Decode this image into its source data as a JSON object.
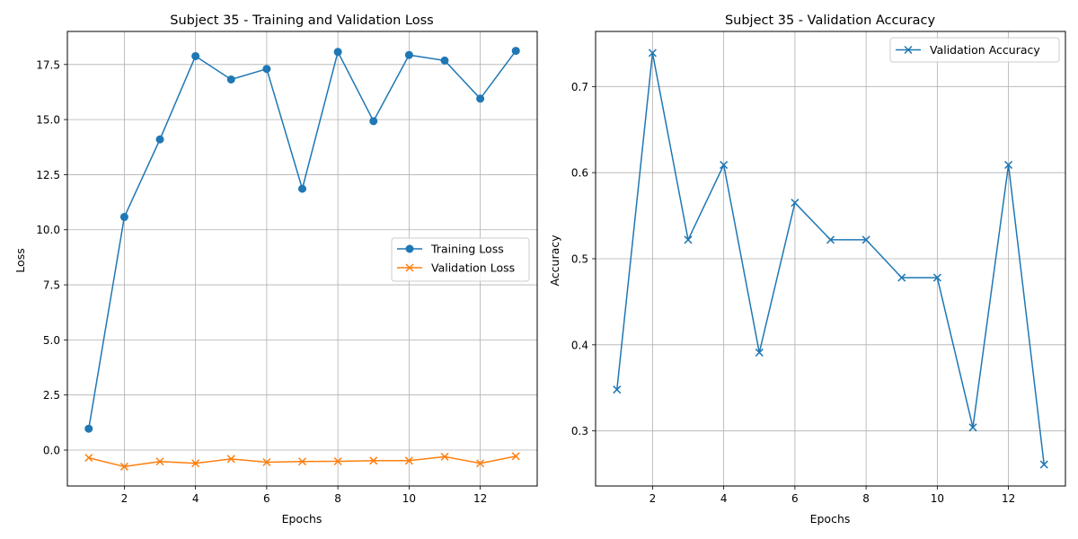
{
  "chart_data": [
    {
      "type": "line",
      "title": "Subject 35 - Training and Validation Loss",
      "xlabel": "Epochs",
      "ylabel": "Loss",
      "x": [
        1,
        2,
        3,
        4,
        5,
        6,
        7,
        8,
        9,
        10,
        11,
        12,
        13
      ],
      "xlim": [
        0.4,
        13.6
      ],
      "ylim": [
        -1.63,
        19.0
      ],
      "xticks": [
        2,
        4,
        6,
        8,
        10,
        12
      ],
      "xtick_labels": [
        "2",
        "4",
        "6",
        "8",
        "10",
        "12"
      ],
      "yticks": [
        0,
        2.5,
        5,
        7.5,
        10,
        12.5,
        15,
        17.5
      ],
      "ytick_labels": [
        "0.0",
        "2.5",
        "5.0",
        "7.5",
        "10.0",
        "12.5",
        "15.0",
        "17.5"
      ],
      "grid": true,
      "legend_position": "center-right",
      "series": [
        {
          "name": "Training Loss",
          "color": "#1f77b4",
          "marker": "circle",
          "values": [
            0.97,
            10.58,
            14.1,
            17.88,
            16.82,
            17.3,
            11.86,
            18.07,
            14.93,
            17.93,
            17.68,
            15.95,
            18.12
          ]
        },
        {
          "name": "Validation Loss",
          "color": "#ff7f0e",
          "marker": "x",
          "values": [
            -0.35,
            -0.75,
            -0.52,
            -0.6,
            -0.4,
            -0.55,
            -0.52,
            -0.51,
            -0.48,
            -0.48,
            -0.3,
            -0.6,
            -0.28
          ]
        }
      ]
    },
    {
      "type": "line",
      "title": "Subject 35 - Validation Accuracy",
      "xlabel": "Epochs",
      "ylabel": "Accuracy",
      "x": [
        1,
        2,
        3,
        4,
        5,
        6,
        7,
        8,
        9,
        10,
        11,
        12,
        13
      ],
      "xlim": [
        0.4,
        13.6
      ],
      "ylim": [
        0.236,
        0.764
      ],
      "xticks": [
        2,
        4,
        6,
        8,
        10,
        12
      ],
      "xtick_labels": [
        "2",
        "4",
        "6",
        "8",
        "10",
        "12"
      ],
      "yticks": [
        0.3,
        0.4,
        0.5,
        0.6,
        0.7
      ],
      "ytick_labels": [
        "0.3",
        "0.4",
        "0.5",
        "0.6",
        "0.7"
      ],
      "grid": true,
      "legend_position": "top-right",
      "series": [
        {
          "name": "Validation Accuracy",
          "color": "#1f77b4",
          "marker": "x",
          "values": [
            0.348,
            0.739,
            0.522,
            0.609,
            0.391,
            0.565,
            0.522,
            0.522,
            0.478,
            0.478,
            0.304,
            0.609,
            0.261
          ]
        }
      ]
    }
  ]
}
